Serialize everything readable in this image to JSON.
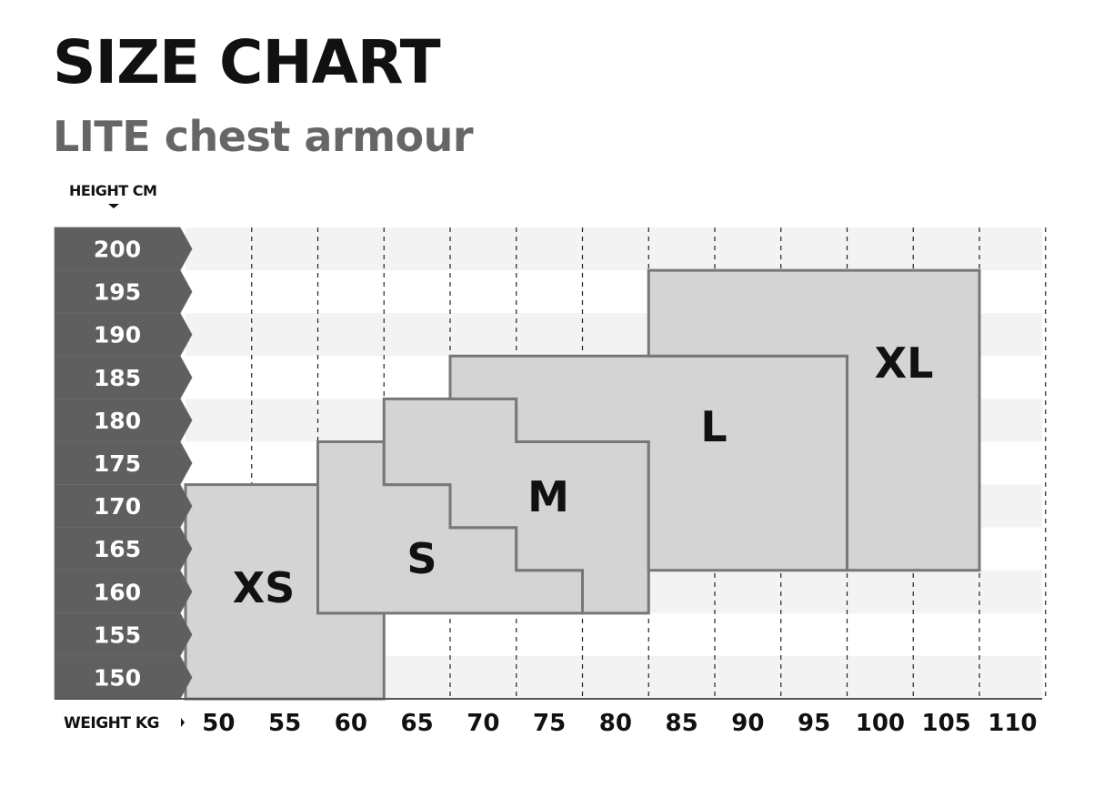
{
  "title": "SIZE CHART",
  "subtitle": "LITE chest armour",
  "y_axis_label": "HEIGHT CM",
  "x_axis_label": "WEIGHT KG",
  "colors": {
    "axis_band": "#5f5f5f",
    "region_fill": "#d4d4d4",
    "region_stroke": "#777777",
    "row_alt": "#f3f3f3"
  },
  "height_ticks": [
    "200",
    "195",
    "190",
    "185",
    "180",
    "175",
    "170",
    "165",
    "160",
    "155",
    "150"
  ],
  "weight_ticks": [
    "50",
    "55",
    "60",
    "65",
    "70",
    "75",
    "80",
    "85",
    "90",
    "95",
    "100",
    "105",
    "110"
  ],
  "sizes": [
    {
      "label": "XS",
      "vertices_kg_cm": [
        [
          47.5,
          172.5
        ],
        [
          57.5,
          172.5
        ],
        [
          57.5,
          157.5
        ],
        [
          62.5,
          157.5
        ],
        [
          62.5,
          147.5
        ],
        [
          47.5,
          147.5
        ]
      ]
    },
    {
      "label": "S",
      "vertices_kg_cm": [
        [
          57.5,
          177.5
        ],
        [
          62.5,
          177.5
        ],
        [
          62.5,
          172.5
        ],
        [
          67.5,
          172.5
        ],
        [
          67.5,
          167.5
        ],
        [
          72.5,
          167.5
        ],
        [
          72.5,
          162.5
        ],
        [
          77.5,
          162.5
        ],
        [
          77.5,
          157.5
        ],
        [
          57.5,
          157.5
        ]
      ]
    },
    {
      "label": "M",
      "vertices_kg_cm": [
        [
          62.5,
          182.5
        ],
        [
          72.5,
          182.5
        ],
        [
          72.5,
          177.5
        ],
        [
          82.5,
          177.5
        ],
        [
          82.5,
          157.5
        ],
        [
          77.5,
          157.5
        ],
        [
          77.5,
          162.5
        ],
        [
          72.5,
          162.5
        ],
        [
          72.5,
          167.5
        ],
        [
          67.5,
          167.5
        ],
        [
          67.5,
          172.5
        ],
        [
          62.5,
          172.5
        ]
      ]
    },
    {
      "label": "L",
      "vertices_kg_cm": [
        [
          67.5,
          187.5
        ],
        [
          97.5,
          187.5
        ],
        [
          97.5,
          162.5
        ],
        [
          82.5,
          162.5
        ],
        [
          82.5,
          177.5
        ],
        [
          72.5,
          177.5
        ],
        [
          72.5,
          182.5
        ],
        [
          67.5,
          182.5
        ]
      ]
    },
    {
      "label": "XL",
      "vertices_kg_cm": [
        [
          82.5,
          197.5
        ],
        [
          107.5,
          197.5
        ],
        [
          107.5,
          162.5
        ],
        [
          97.5,
          162.5
        ],
        [
          97.5,
          187.5
        ],
        [
          82.5,
          187.5
        ]
      ]
    }
  ]
}
